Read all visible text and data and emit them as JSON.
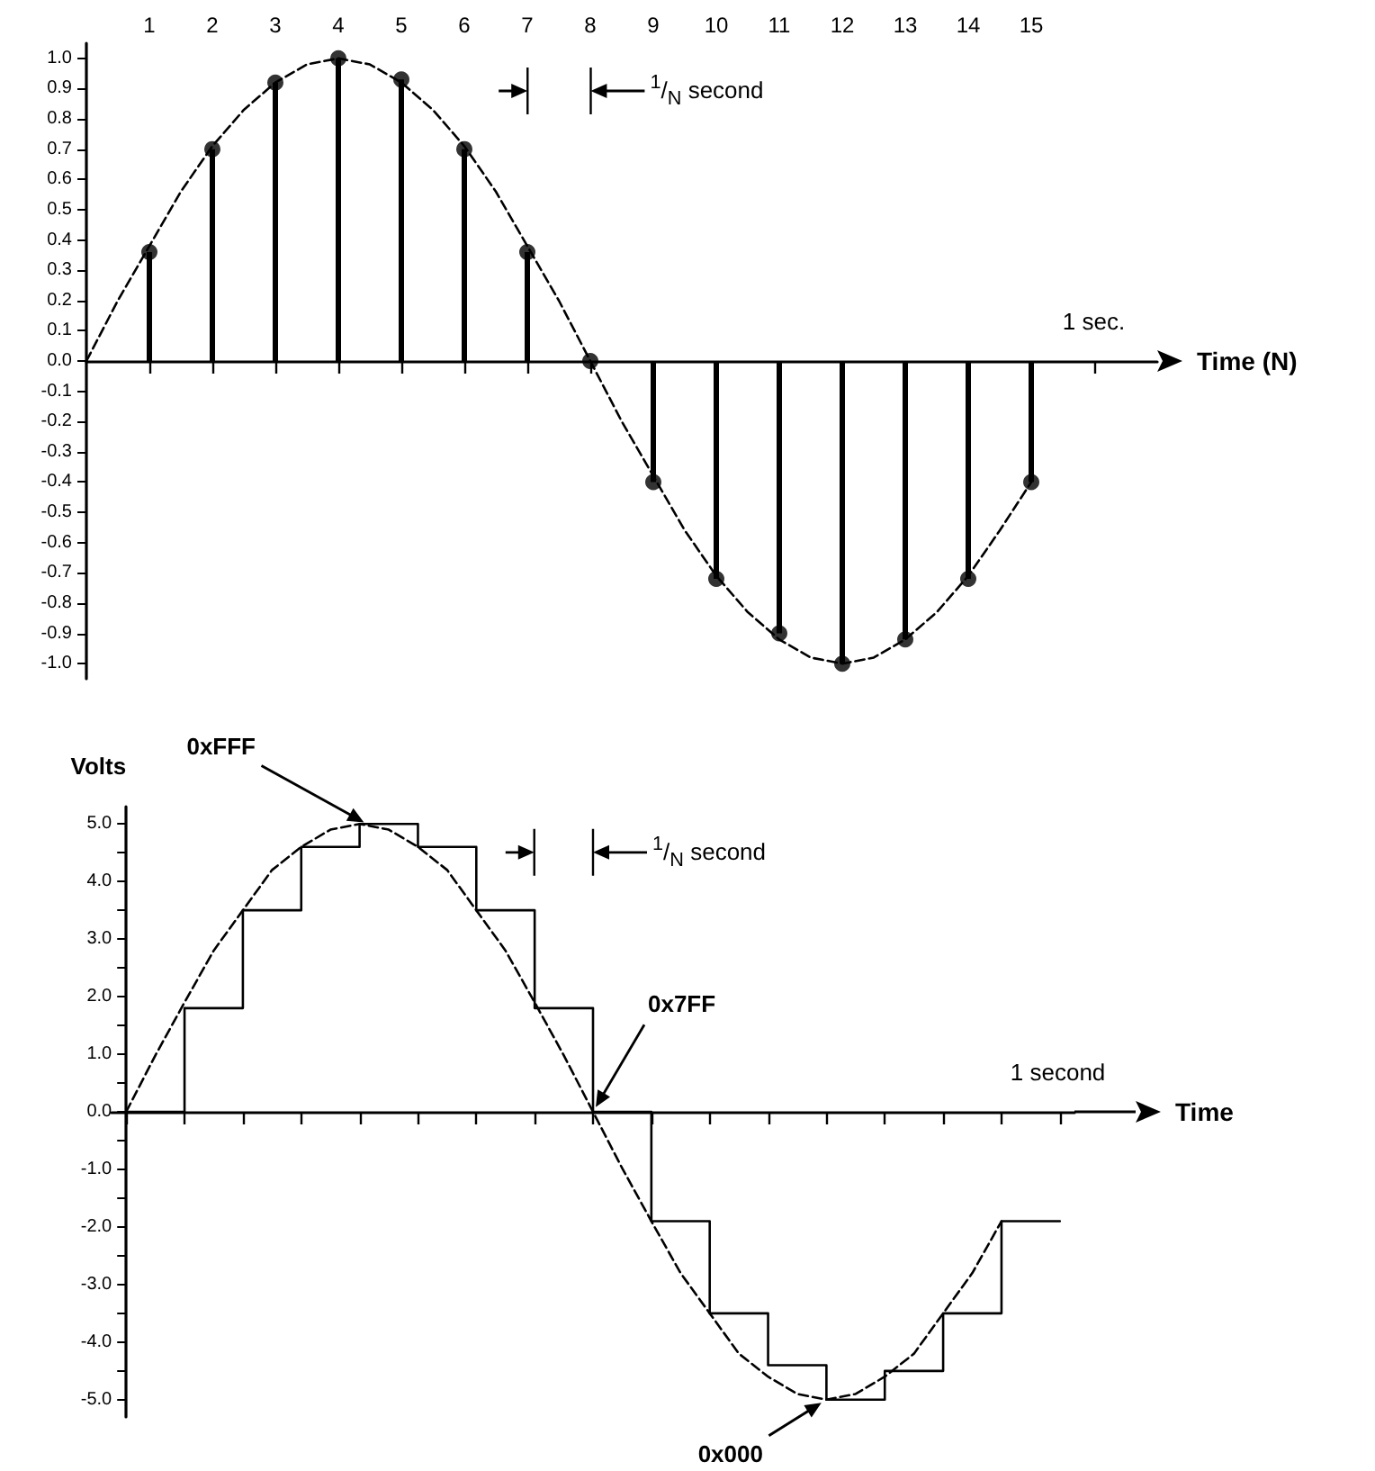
{
  "chart_data": [
    {
      "type": "lollipop",
      "xlabel": "Time (N)",
      "xlim": [
        0,
        17
      ],
      "ylim": [
        -1.05,
        1.05
      ],
      "marker": "circle",
      "xticks": [
        1,
        2,
        3,
        4,
        5,
        6,
        7,
        8,
        9,
        10,
        11,
        12,
        13,
        14,
        15,
        {
          "value": 16,
          "label": null
        }
      ],
      "yticks": [
        {
          "value": 1,
          "label": "1.0"
        },
        0.9,
        0.8,
        0.7,
        0.6,
        0.5,
        0.4,
        0.3,
        0.2,
        0.1,
        {
          "value": 0,
          "label": "0.0"
        },
        -0.1,
        -0.2,
        -0.3,
        -0.4,
        -0.5,
        -0.6,
        -0.7,
        -0.8,
        -0.9,
        {
          "value": -1,
          "label": "-1.0"
        }
      ],
      "series": [
        {
          "type": "line",
          "line_style": "dashed",
          "marker": "none",
          "color": "#000000",
          "x": [
            0,
            0.5,
            1,
            1.5,
            2,
            2.5,
            3,
            3.5,
            4,
            4.5,
            5,
            5.5,
            6,
            6.5,
            7,
            7.5,
            8,
            8.5,
            9,
            9.5,
            10,
            10.5,
            11,
            11.5,
            12,
            12.5,
            13,
            13.5,
            14,
            14.5,
            15
          ],
          "values": [
            0,
            0.2,
            0.38,
            0.56,
            0.71,
            0.83,
            0.92,
            0.98,
            1,
            0.98,
            0.92,
            0.83,
            0.71,
            0.56,
            0.38,
            0.2,
            0,
            -0.2,
            -0.38,
            -0.56,
            -0.71,
            -0.83,
            -0.92,
            -0.98,
            -1,
            -0.98,
            -0.92,
            -0.83,
            -0.71,
            -0.56,
            -0.4
          ]
        },
        {
          "color": "#000000",
          "x": [
            1,
            2,
            3,
            4,
            5,
            6,
            7,
            8,
            9,
            10,
            11,
            12,
            13,
            14,
            15
          ],
          "values": [
            0.36,
            0.7,
            0.92,
            1,
            0.93,
            0.7,
            0.36,
            0,
            -0.4,
            -0.72,
            -0.9,
            -1,
            -0.92,
            -0.72,
            -0.4
          ]
        }
      ],
      "annotations": [
        "1 sec.",
        "$^{1}$/$_{N}$ second"
      ]
    },
    {
      "type": "step",
      "xlabel": "Time",
      "ylabel": "Volts",
      "ylim": [
        -5.3,
        5.3
      ],
      "tick_labels": "y",
      "categories": [
        null,
        null,
        null,
        null,
        null,
        null,
        null,
        null,
        null,
        null,
        null,
        null,
        null,
        null,
        null,
        null,
        null,
        null,
        null,
        null,
        null,
        null,
        null,
        null,
        null,
        null,
        null,
        null,
        null,
        null,
        null,
        null,
        null
      ],
      "yticks": [
        {
          "value": 5,
          "label": "5.0"
        },
        {
          "value": 4.5,
          "label": null
        },
        {
          "value": 4,
          "label": "4.0"
        },
        {
          "value": 3.5,
          "label": null
        },
        {
          "value": 3,
          "label": "3.0"
        },
        {
          "value": 2.5,
          "label": null
        },
        {
          "value": 2,
          "label": "2.0"
        },
        {
          "value": 1.5,
          "label": null
        },
        {
          "value": 1,
          "label": "1.0"
        },
        {
          "value": 0.5,
          "label": null
        },
        {
          "value": 0,
          "label": "0.0"
        },
        {
          "value": -0.5,
          "label": null
        },
        {
          "value": -1,
          "label": "-1.0"
        },
        {
          "value": -1.5,
          "label": null
        },
        {
          "value": -2,
          "label": "-2.0"
        },
        {
          "value": -2.5,
          "label": null
        },
        {
          "value": -3,
          "label": "-3.0"
        },
        {
          "value": -3.5,
          "label": null
        },
        {
          "value": -4,
          "label": "-4.0"
        },
        {
          "value": -4.5,
          "label": null
        },
        {
          "value": -5,
          "label": "-5.0"
        }
      ],
      "series": [
        {
          "color": "#000000",
          "values": [
            0,
            0,
            1.8,
            1.8,
            3.5,
            3.5,
            4.6,
            4.6,
            5,
            5,
            4.6,
            4.6,
            3.5,
            3.5,
            1.8,
            1.8,
            0,
            0,
            -1.9,
            -1.9,
            -3.5,
            -3.5,
            -4.4,
            -4.4,
            -5,
            -5,
            -4.5,
            -4.5,
            -3.5,
            -3.5,
            -1.9,
            -1.9,
            -1.9
          ]
        },
        {
          "type": "line",
          "line_style": "dashed",
          "color": "#000000",
          "values": [
            0,
            0.98,
            1.9,
            2.8,
            3.5,
            4.2,
            4.6,
            4.9,
            5,
            4.9,
            4.6,
            4.2,
            3.5,
            2.8,
            1.9,
            0.98,
            0,
            -0.98,
            -1.9,
            -2.8,
            -3.5,
            -4.2,
            -4.6,
            -4.9,
            -5,
            -4.9,
            -4.6,
            -4.2,
            -3.5,
            -2.8,
            -1.9,
            null,
            null
          ]
        }
      ],
      "annotations": [
        "0xFFF",
        "0x7FF",
        "0x000",
        "1 second",
        "$^{1}$/$_{N}$ second"
      ]
    }
  ]
}
